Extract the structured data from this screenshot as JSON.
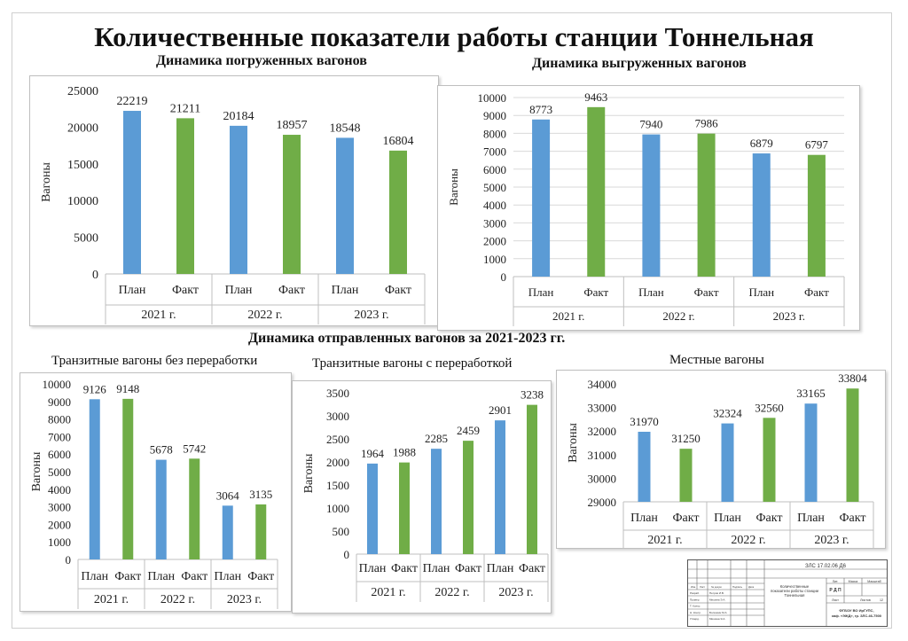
{
  "title": "Количественные показатели работы станции Тоннельная",
  "section_title": "Динамика отправленных вагонов за 2021-2023 гг.",
  "colors": {
    "plan": "#5b9bd5",
    "fact": "#70ad47"
  },
  "chart_data": [
    {
      "type": "bar",
      "title": "Динамика погруженных вагонов",
      "ylabel": "Вагоны",
      "ylim": [
        0,
        25000
      ],
      "yticks": [
        0,
        5000,
        10000,
        15000,
        20000,
        25000
      ],
      "grid": false,
      "groups": [
        "2021 г.",
        "2022 г.",
        "2023 г."
      ],
      "categories": [
        "План",
        "Факт",
        "План",
        "Факт",
        "План",
        "Факт"
      ],
      "values": [
        22219,
        21211,
        20184,
        18957,
        18548,
        16804
      ]
    },
    {
      "type": "bar",
      "title": "Динамика выгруженных  вагонов",
      "ylabel": "Вагоны",
      "ylim": [
        0,
        10000
      ],
      "yticks": [
        0,
        1000,
        2000,
        3000,
        4000,
        5000,
        6000,
        7000,
        8000,
        9000,
        10000
      ],
      "grid": true,
      "groups": [
        "2021 г.",
        "2022 г.",
        "2023 г."
      ],
      "categories": [
        "План",
        "Факт",
        "План",
        "Факт",
        "План",
        "Факт"
      ],
      "values": [
        8773,
        9463,
        7940,
        7986,
        6879,
        6797
      ]
    },
    {
      "type": "bar",
      "title": "Транзитные вагоны без переработки",
      "ylabel": "Вагоны",
      "ylim": [
        0,
        10000
      ],
      "yticks": [
        0,
        1000,
        2000,
        3000,
        4000,
        5000,
        6000,
        7000,
        8000,
        9000,
        10000
      ],
      "grid": false,
      "groups": [
        "2021 г.",
        "2022 г.",
        "2023 г."
      ],
      "categories": [
        "План",
        "Факт",
        "План",
        "Факт",
        "План",
        "Факт"
      ],
      "values": [
        9126,
        9148,
        5678,
        5742,
        3064,
        3135
      ]
    },
    {
      "type": "bar",
      "title": "Транзитные вагоны с переработкой",
      "ylabel": "Вагоны",
      "ylim": [
        0,
        3500
      ],
      "yticks": [
        0,
        500,
        1000,
        1500,
        2000,
        2500,
        3000,
        3500
      ],
      "grid": false,
      "groups": [
        "2021 г.",
        "2022 г.",
        "2023 г."
      ],
      "categories": [
        "План",
        "Факт",
        "План",
        "Факт",
        "План",
        "Факт"
      ],
      "values": [
        1964,
        1988,
        2285,
        2459,
        2901,
        3238
      ]
    },
    {
      "type": "bar",
      "title": "Местные вагоны",
      "ylabel": "Вагоны",
      "ylim": [
        29000,
        34000
      ],
      "yticks": [
        29000,
        30000,
        31000,
        32000,
        33000,
        34000
      ],
      "grid": false,
      "groups": [
        "2021 г.",
        "2022 г.",
        "2023 г."
      ],
      "categories": [
        "План",
        "Факт",
        "План",
        "Факт",
        "План",
        "Факт"
      ],
      "values": [
        31970,
        31250,
        32324,
        32560,
        33165,
        33804
      ]
    }
  ],
  "stamp": {
    "doc_code": "ЗЛС 17.02.06 Д6",
    "drawing_title": "Количественные показатели работы станции Тоннельная",
    "organization": "ФГБОУ ВО ИрГУПС, каф. «ЭЖД», гр. ЗЛС.46-7500",
    "stage_label": "Лит.",
    "mass_label": "Масса",
    "scale_label": "Масштаб",
    "stage_value": "Р Д П",
    "sheet_label": "Лист",
    "sheets_label": "Листов",
    "sheets_value": "12",
    "rows": [
      {
        "role": "Разраб.",
        "name": "Петров И.В."
      },
      {
        "role": "Провер.",
        "name": "Мишина Э.А."
      },
      {
        "role": "Т. Контр.",
        "name": ""
      },
      {
        "role": "Н. Контр.",
        "name": "Болонкин М.А."
      },
      {
        "role": "Утверд.",
        "name": "Мишина Э.А."
      }
    ],
    "header_cells": [
      "Изм.",
      "Лист",
      "№ докум.",
      "Подпись",
      "Дата"
    ]
  }
}
